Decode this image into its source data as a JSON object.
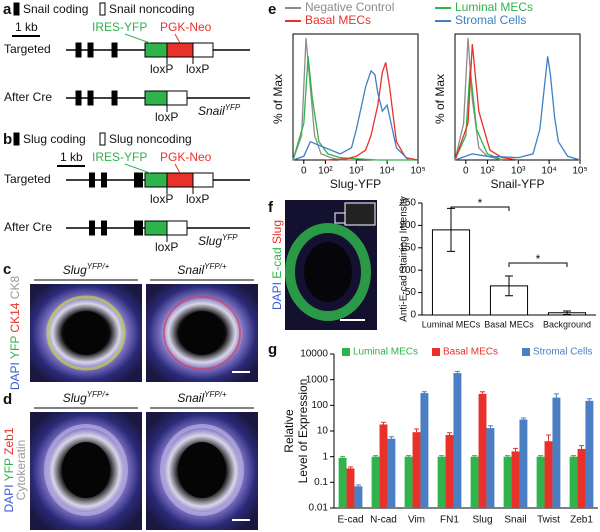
{
  "panel_labels": [
    "a",
    "b",
    "c",
    "d",
    "e",
    "f",
    "g"
  ],
  "a": {
    "legend": [
      "Snail coding",
      "Snail noncoding"
    ],
    "scale": "1 kb",
    "cassette": [
      "IRES-YFP",
      "PGK-Neo"
    ],
    "rows": [
      "Targeted",
      "After Cre"
    ],
    "loxp": [
      "loxP",
      "loxP",
      "loxP"
    ],
    "allele": {
      "gene": "Snail",
      "sup": "YFP"
    }
  },
  "b": {
    "legend": [
      "Slug coding",
      "Slug noncoding"
    ],
    "scale": "1 kb",
    "cassette": [
      "IRES-YFP",
      "PGK-Neo"
    ],
    "rows": [
      "Targeted",
      "After Cre"
    ],
    "loxp": [
      "loxP",
      "loxP",
      "loxP"
    ],
    "allele": {
      "gene": "Slug",
      "sup": "YFP"
    }
  },
  "c": {
    "genotypes": [
      {
        "gene": "Slug",
        "sup": "YFP/+"
      },
      {
        "gene": "Snail",
        "sup": "YFP/+"
      }
    ],
    "stain": [
      "DAPI",
      "YFP",
      "CK14",
      "CK8"
    ]
  },
  "d": {
    "genotypes": [
      {
        "gene": "Slug",
        "sup": "YFP/+"
      },
      {
        "gene": "Snail",
        "sup": "YFP/+"
      }
    ],
    "stain": [
      "DAPI",
      "YFP",
      "Zeb1",
      "Cytokeratin"
    ]
  },
  "f_image": {
    "stain": [
      "DAPI",
      "E-cad",
      "Slug"
    ]
  },
  "chart_data": [
    {
      "type": "histogram-curve",
      "xlabel": "Slug-YFP",
      "ylabel": "% of Max",
      "xscale": "biexponential",
      "xlim": [
        -50,
        100000
      ],
      "ylim": [
        0,
        100
      ],
      "xticks": [
        0,
        {
          "value": 100,
          "label": "10²"
        },
        {
          "value": 1000,
          "label": "10³"
        },
        {
          "value": 10000,
          "label": "10⁴"
        },
        {
          "value": 100000,
          "label": "10⁵"
        }
      ],
      "series": [
        {
          "name": "Negative Control",
          "color": "#8c8c8c",
          "x": [
            -50,
            -10,
            10,
            30,
            50,
            80,
            150,
            300,
            1000
          ],
          "values": [
            0,
            20,
            100,
            60,
            20,
            5,
            2,
            0,
            0
          ]
        },
        {
          "name": "Luminal MECs",
          "color": "#2fb34a",
          "x": [
            -50,
            0,
            20,
            40,
            70,
            120,
            300,
            1000,
            5000,
            100000
          ],
          "values": [
            0,
            30,
            85,
            50,
            15,
            5,
            2,
            1,
            0,
            0
          ]
        },
        {
          "name": "Basal MECs",
          "color": "#e8312a",
          "x": [
            100,
            500,
            1000,
            2000,
            3000,
            5000,
            7000,
            9000,
            12000,
            20000,
            40000,
            100000
          ],
          "values": [
            0,
            1,
            3,
            8,
            20,
            45,
            72,
            80,
            60,
            15,
            2,
            0
          ]
        },
        {
          "name": "Stromal Cells",
          "color": "#3f7fc4",
          "x": [
            -50,
            0,
            30,
            100,
            300,
            700,
            1000,
            1500,
            2000,
            3000,
            4000,
            5000,
            7000,
            10000,
            20000,
            50000
          ],
          "values": [
            0,
            3,
            15,
            10,
            5,
            10,
            25,
            45,
            60,
            73,
            70,
            55,
            40,
            45,
            10,
            0
          ]
        }
      ]
    },
    {
      "type": "histogram-curve",
      "xlabel": "Snail-YFP",
      "ylabel": "% of Max",
      "xscale": "biexponential",
      "xlim": [
        -50,
        100000
      ],
      "ylim": [
        0,
        100
      ],
      "xticks": [
        0,
        {
          "value": 100,
          "label": "10²"
        },
        {
          "value": 1000,
          "label": "10³"
        },
        {
          "value": 10000,
          "label": "10⁴"
        },
        {
          "value": 100000,
          "label": "10⁵"
        }
      ],
      "series": [
        {
          "color": "#8c8c8c",
          "x": [
            -50,
            -10,
            10,
            30,
            60,
            100,
            300
          ],
          "values": [
            0,
            30,
            100,
            50,
            10,
            3,
            0
          ]
        },
        {
          "color": "#2fb34a",
          "x": [
            -50,
            0,
            20,
            50,
            100,
            300
          ],
          "values": [
            0,
            20,
            75,
            25,
            5,
            0
          ]
        },
        {
          "color": "#e8312a",
          "x": [
            -50,
            10,
            30,
            60,
            120,
            300,
            1000
          ],
          "values": [
            0,
            30,
            95,
            40,
            8,
            2,
            0
          ]
        },
        {
          "color": "#3f7fc4",
          "x": [
            -50,
            30,
            100,
            1000,
            3000,
            5000,
            7000,
            9000,
            11000,
            15000,
            20000,
            40000,
            100000
          ],
          "values": [
            0,
            5,
            3,
            2,
            5,
            25,
            60,
            85,
            70,
            35,
            15,
            3,
            0
          ]
        }
      ]
    },
    {
      "type": "bar",
      "ylabel": "Anti-E-cad Staining Intensity",
      "categories": [
        "Luminal MECs",
        "Basal MECs",
        "Background"
      ],
      "values": [
        190,
        65,
        5
      ],
      "errors": [
        48,
        22,
        4
      ],
      "color": "#ffffff",
      "ylim": [
        0,
        250
      ],
      "yticks": [
        0,
        50,
        100,
        150,
        200,
        250
      ],
      "annotations": [
        "*",
        "*"
      ]
    },
    {
      "type": "grouped-bar",
      "ylabel": [
        "Relative",
        "Level of Expression"
      ],
      "ylog": true,
      "legend": "top",
      "categories": [
        "E-cad",
        "N-cad",
        "Vim",
        "FN1",
        "Slug",
        "Snail",
        "Twist",
        "Zeb1"
      ],
      "ylim": [
        0.01,
        10000
      ],
      "yticks": [
        0.01,
        0.1,
        1,
        10,
        100,
        1000,
        10000
      ],
      "series": [
        {
          "name": "Luminal MECs",
          "color": "#2fb34a",
          "values": [
            0.9,
            1,
            1,
            1,
            1,
            1,
            1,
            1
          ],
          "errors": [
            0.1,
            0.1,
            0.1,
            0.1,
            0.1,
            0.1,
            0.1,
            0.1
          ]
        },
        {
          "name": "Basal MECs",
          "color": "#e8312a",
          "values": [
            0.35,
            18,
            9,
            7,
            280,
            1.6,
            4,
            2
          ],
          "errors": [
            0.05,
            4,
            3,
            1.5,
            60,
            0.5,
            3,
            0.7
          ]
        },
        {
          "name": "Stromal Cells",
          "color": "#4a7fc4",
          "values": [
            0.07,
            5,
            300,
            1800,
            13,
            28,
            200,
            150
          ],
          "errors": [
            0.01,
            1,
            40,
            300,
            3,
            4,
            80,
            30
          ]
        }
      ]
    }
  ]
}
